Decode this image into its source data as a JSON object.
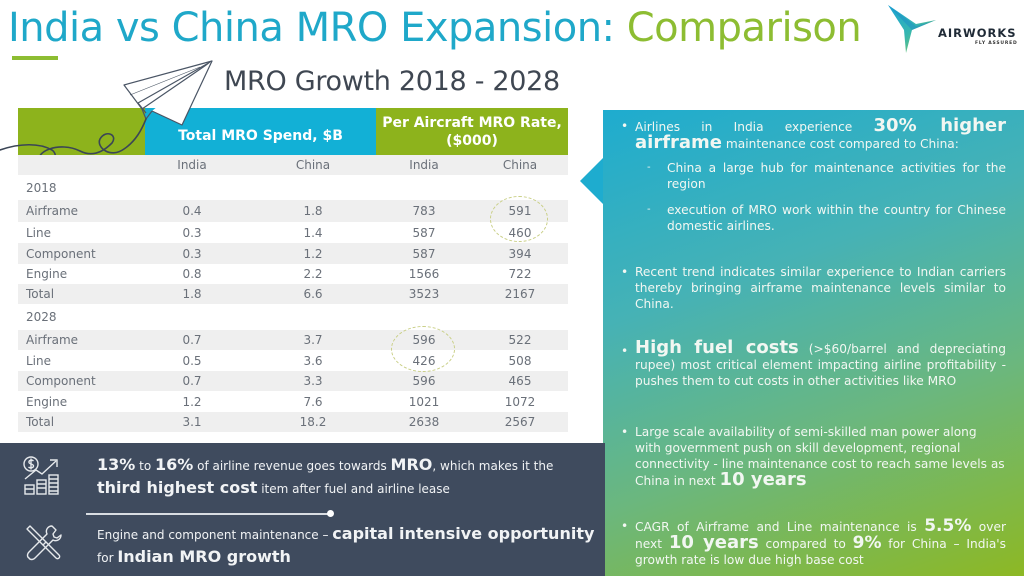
{
  "title": {
    "part1": "India vs China MRO Expansion: ",
    "part2": "Comparison"
  },
  "logo": {
    "name": "AIRWORKS",
    "tagline": "FLY ASSURED"
  },
  "subtitle": "MRO Growth 2018 - 2028",
  "table": {
    "header_spend": "Total MRO Spend, $B",
    "header_rate": "Per Aircraft MRO Rate, ($000)",
    "subheaders": [
      "India",
      "China",
      "India",
      "China"
    ],
    "sections": [
      {
        "year": "2018",
        "rows": [
          {
            "label": "Airframe",
            "values": [
              "0.4",
              "1.8",
              "783",
              "591"
            ]
          },
          {
            "label": "Line",
            "values": [
              "0.3",
              "1.4",
              "587",
              "460"
            ]
          },
          {
            "label": "Component",
            "values": [
              "0.3",
              "1.2",
              "587",
              "394"
            ]
          },
          {
            "label": "Engine",
            "values": [
              "0.8",
              "2.2",
              "1566",
              "722"
            ]
          },
          {
            "label": "Total",
            "values": [
              "1.8",
              "6.6",
              "3523",
              "2167"
            ]
          }
        ]
      },
      {
        "year": "2028",
        "rows": [
          {
            "label": "Airframe",
            "values": [
              "0.7",
              "3.7",
              "596",
              "522"
            ]
          },
          {
            "label": "Line",
            "values": [
              "0.5",
              "3.6",
              "426",
              "508"
            ]
          },
          {
            "label": "Component",
            "values": [
              "0.7",
              "3.3",
              "596",
              "465"
            ]
          },
          {
            "label": "Engine",
            "values": [
              "1.2",
              "7.6",
              "1021",
              "1072"
            ]
          },
          {
            "label": "Total",
            "values": [
              "3.1",
              "18.2",
              "2638",
              "2567"
            ]
          }
        ]
      }
    ]
  },
  "right_panel": {
    "b1": {
      "pre": "Airlines in India experience ",
      "bold": "30% higher airframe",
      "post": " maintenance cost compared to China:",
      "subs": [
        "China a large hub for maintenance activities for the region",
        "execution of MRO work within the country for Chinese domestic airlines."
      ]
    },
    "b2": "Recent trend indicates similar experience to Indian carriers thereby bringing airframe maintenance levels similar to China.",
    "b3": {
      "bold": "High fuel costs",
      "post": " (>$60/barrel and depreciating rupee) most critical element impacting airline profitability - pushes them to cut costs in other activities like MRO"
    },
    "b4": {
      "pre": "Large scale availability of semi-skilled man power along with government push on skill development, regional connectivity - line maintenance cost to reach same levels as China in next ",
      "bold": "10 years"
    },
    "b5": {
      "pre": "CAGR of Airframe and Line maintenance is ",
      "bold1": "5.5%",
      "mid1": " over next ",
      "bold2": "10 years",
      "mid2": " compared to ",
      "bold3": "9%",
      "post": " for China – India's growth rate is low due high base cost"
    }
  },
  "bottom_panel": {
    "fact1": {
      "b1": "13%",
      "t1": " to ",
      "b2": "16%",
      "t2": " of airline revenue goes towards ",
      "b3": "MRO",
      "t3": ", which makes it the ",
      "b4": "third highest cost",
      "t4": " item after fuel and airline lease"
    },
    "fact2": {
      "t1": "Engine and component maintenance – ",
      "b1": "capital intensive opportunity",
      "t2": " for ",
      "b2": "Indian MRO growth"
    },
    "icons": [
      "revenue-growth-icon",
      "tools-icon"
    ]
  },
  "colors": {
    "blue": "#1fa8c9",
    "green": "#8dbd32",
    "dark": "#3f4b5e"
  }
}
